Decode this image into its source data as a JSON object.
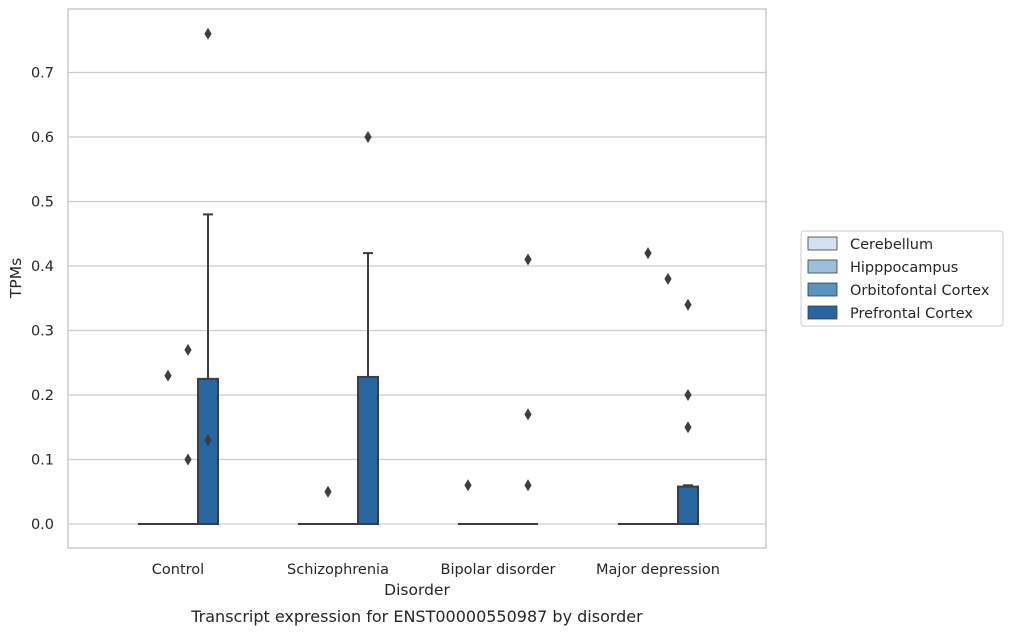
{
  "chart_data": {
    "type": "box",
    "title": "",
    "caption": "Transcript expression for ENST00000550987 by disorder",
    "xlabel": "Disorder",
    "ylabel": "TPMs",
    "ylim": [
      -0.037,
      0.8
    ],
    "yticks": [
      0.0,
      0.1,
      0.2,
      0.3,
      0.4,
      0.5,
      0.6,
      0.7
    ],
    "ytick_labels": [
      "0.0",
      "0.1",
      "0.2",
      "0.3",
      "0.4",
      "0.5",
      "0.6",
      "0.7"
    ],
    "grid": "horizontal",
    "legend_position": "right",
    "categories": [
      "Control",
      "Schizophrenia",
      "Bipolar disorder",
      "Major depression"
    ],
    "series": [
      {
        "name": "Cerebellum",
        "color": "#d1e1f0",
        "boxes": [
          {
            "q1": 0,
            "median": 0,
            "q3": 0,
            "whisker_low": 0,
            "whisker_high": 0,
            "outliers": []
          },
          {
            "q1": 0,
            "median": 0,
            "q3": 0,
            "whisker_low": 0,
            "whisker_high": 0,
            "outliers": []
          },
          {
            "q1": 0,
            "median": 0,
            "q3": 0,
            "whisker_low": 0,
            "whisker_high": 0,
            "outliers": [
              0.06
            ]
          },
          {
            "q1": 0,
            "median": 0,
            "q3": 0,
            "whisker_low": 0,
            "whisker_high": 0,
            "outliers": []
          }
        ]
      },
      {
        "name": "Hipppocampus",
        "color": "#9dc0d9",
        "boxes": [
          {
            "q1": 0,
            "median": 0,
            "q3": 0,
            "whisker_low": 0,
            "whisker_high": 0,
            "outliers": [
              0.23
            ]
          },
          {
            "q1": 0,
            "median": 0,
            "q3": 0,
            "whisker_low": 0,
            "whisker_high": 0,
            "outliers": [
              0.05
            ]
          },
          {
            "q1": 0,
            "median": 0,
            "q3": 0,
            "whisker_low": 0,
            "whisker_high": 0,
            "outliers": []
          },
          {
            "q1": 0,
            "median": 0,
            "q3": 0,
            "whisker_low": 0,
            "whisker_high": 0,
            "outliers": [
              0.42
            ]
          }
        ]
      },
      {
        "name": "Orbitofontal Cortex",
        "color": "#5b93c0",
        "boxes": [
          {
            "q1": 0,
            "median": 0,
            "q3": 0,
            "whisker_low": 0,
            "whisker_high": 0,
            "outliers": [
              0.27,
              0.1
            ]
          },
          {
            "q1": 0,
            "median": 0,
            "q3": 0,
            "whisker_low": 0,
            "whisker_high": 0,
            "outliers": []
          },
          {
            "q1": 0,
            "median": 0,
            "q3": 0,
            "whisker_low": 0,
            "whisker_high": 0,
            "outliers": []
          },
          {
            "q1": 0,
            "median": 0,
            "q3": 0,
            "whisker_low": 0,
            "whisker_high": 0,
            "outliers": [
              0.38
            ]
          }
        ]
      },
      {
        "name": "Prefrontal Cortex",
        "color": "#2866a1",
        "boxes": [
          {
            "q1": 0,
            "median": 0,
            "q3": 0.225,
            "whisker_low": 0,
            "whisker_high": 0.48,
            "outliers": [
              0.13,
              0.76
            ]
          },
          {
            "q1": 0,
            "median": 0,
            "q3": 0.228,
            "whisker_low": 0,
            "whisker_high": 0.42,
            "outliers": [
              0.6
            ]
          },
          {
            "q1": 0,
            "median": 0,
            "q3": 0,
            "whisker_low": 0,
            "whisker_high": 0,
            "outliers": [
              0.41,
              0.17,
              0.06
            ]
          },
          {
            "q1": 0,
            "median": 0,
            "q3": 0.058,
            "whisker_low": 0,
            "whisker_high": 0.06,
            "outliers": [
              0.34,
              0.2,
              0.15
            ]
          }
        ]
      }
    ]
  }
}
